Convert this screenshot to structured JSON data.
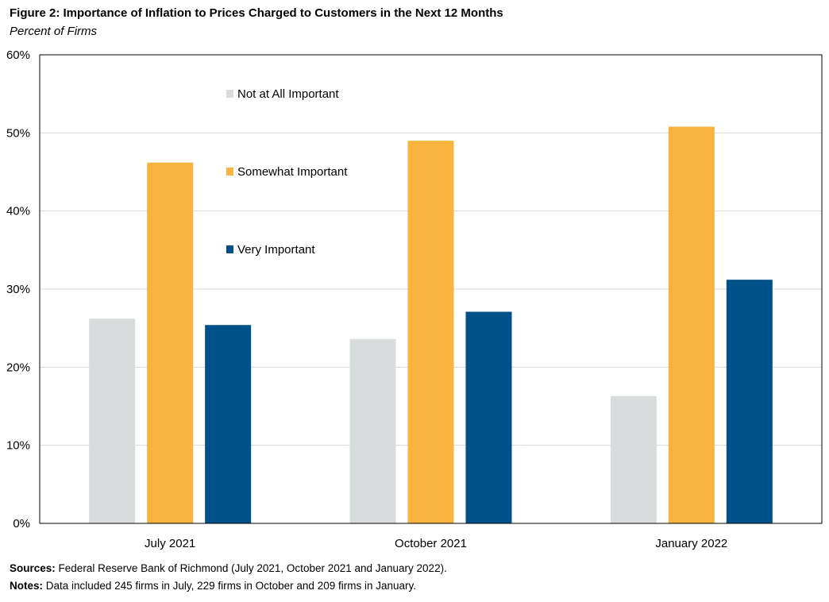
{
  "title": "Figure 2: Importance of Inflation to Prices Charged to Customers in the Next 12 Months",
  "subtitle": "Percent of Firms",
  "sources_label": "Sources:",
  "sources_text": "Federal Reserve Bank of Richmond (July 2021, October 2021 and January 2022).",
  "notes_label": "Notes:",
  "notes_text": "Data included 245 firms in July, 229 firms in October and 209 firms in January.",
  "chart_data": {
    "type": "bar",
    "title": "Figure 2: Importance of Inflation to Prices Charged to Customers in the Next 12 Months",
    "subtitle": "Percent of Firms",
    "categories": [
      "July 2021",
      "October 2021",
      "January 2022"
    ],
    "series": [
      {
        "name": "Not at All Important",
        "color": "#d9dcdc",
        "values": [
          26.2,
          23.6,
          16.3
        ]
      },
      {
        "name": "Somewhat Important",
        "color": "#f8b43e",
        "values": [
          46.2,
          49.0,
          50.8
        ]
      },
      {
        "name": "Very Important",
        "color": "#00508a",
        "values": [
          25.4,
          27.1,
          31.2
        ]
      }
    ],
    "ylim": [
      0,
      60
    ],
    "yticks": [
      0,
      10,
      20,
      30,
      40,
      50,
      60
    ],
    "ytick_labels": [
      "0%",
      "10%",
      "20%",
      "30%",
      "40%",
      "50%",
      "60%"
    ],
    "grid": true,
    "legend_position": "top-left"
  }
}
